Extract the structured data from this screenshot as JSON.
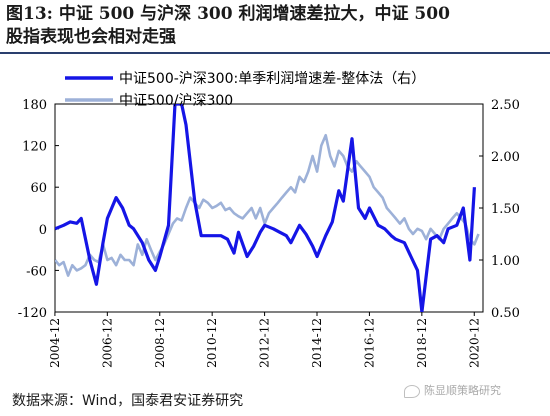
{
  "title": {
    "line1": "图13: 中证 500 与沪深 300 利润增速差拉大，中证 500",
    "line2": "股指表现也会相对走强"
  },
  "source": "数据来源：Wind，国泰君安证券研究",
  "watermark": "陈显顺策略研究",
  "chart_data": {
    "type": "line",
    "legend_position": "top",
    "colors": {
      "profit_diff": "#1515e6",
      "ratio": "#9db1d8"
    },
    "left_axis": {
      "ylim": [
        -120,
        180
      ],
      "ticks": [
        "-120",
        "-60",
        "0",
        "60",
        "120",
        "180"
      ]
    },
    "right_axis": {
      "ylim": [
        0.5,
        2.5
      ],
      "ticks": [
        "0.50",
        "1.00",
        "1.50",
        "2.00",
        "2.50"
      ]
    },
    "x_ticks": [
      "2004-12",
      "2006-12",
      "2008-12",
      "2010-12",
      "2012-12",
      "2014-12",
      "2016-12",
      "2018-12",
      "2020-12"
    ],
    "series": [
      {
        "name": "中证500-沪深300:单季利润增速差-整体法（右）",
        "axis": "left",
        "x": [
          2004.92,
          2005.25,
          2005.5,
          2005.75,
          2005.92,
          2006.25,
          2006.5,
          2006.75,
          2006.92,
          2007.25,
          2007.5,
          2007.75,
          2007.92,
          2008.25,
          2008.5,
          2008.75,
          2008.92,
          2009.25,
          2009.5,
          2009.75,
          2009.92,
          2010.25,
          2010.5,
          2010.75,
          2010.92,
          2011.25,
          2011.5,
          2011.75,
          2011.92,
          2012.25,
          2012.5,
          2012.75,
          2012.92,
          2013.25,
          2013.5,
          2013.75,
          2013.92,
          2014.25,
          2014.5,
          2014.75,
          2014.92,
          2015.25,
          2015.5,
          2015.75,
          2015.92,
          2016.25,
          2016.5,
          2016.75,
          2016.92,
          2017.25,
          2017.5,
          2017.75,
          2017.92,
          2018.25,
          2018.5,
          2018.75,
          2018.92,
          2019.25,
          2019.5,
          2019.75,
          2019.92,
          2020.25,
          2020.5,
          2020.75,
          2020.92
        ],
        "y": [
          0,
          5,
          10,
          8,
          15,
          -45,
          -80,
          -20,
          15,
          45,
          30,
          5,
          0,
          -20,
          -45,
          -60,
          -40,
          5,
          180,
          180,
          150,
          40,
          -10,
          -10,
          -10,
          -10,
          -15,
          -35,
          -5,
          -40,
          -25,
          -5,
          5,
          0,
          -5,
          -10,
          -20,
          5,
          -8,
          -25,
          -40,
          -10,
          10,
          55,
          40,
          130,
          30,
          15,
          30,
          5,
          0,
          -10,
          -15,
          -20,
          -40,
          -60,
          -120,
          -15,
          -10,
          -20,
          0,
          5,
          30,
          -45,
          60
        ]
      },
      {
        "name": "中证500/沪深300",
        "axis": "right",
        "x": [
          2004.92,
          2005.08,
          2005.25,
          2005.42,
          2005.58,
          2005.75,
          2005.92,
          2006.08,
          2006.25,
          2006.42,
          2006.58,
          2006.75,
          2006.92,
          2007.08,
          2007.25,
          2007.42,
          2007.58,
          2007.75,
          2007.92,
          2008.08,
          2008.25,
          2008.42,
          2008.58,
          2008.75,
          2008.92,
          2009.08,
          2009.25,
          2009.42,
          2009.58,
          2009.75,
          2009.92,
          2010.08,
          2010.25,
          2010.42,
          2010.58,
          2010.75,
          2010.92,
          2011.08,
          2011.25,
          2011.42,
          2011.58,
          2011.75,
          2011.92,
          2012.08,
          2012.25,
          2012.42,
          2012.58,
          2012.75,
          2012.92,
          2013.08,
          2013.25,
          2013.42,
          2013.58,
          2013.75,
          2013.92,
          2014.08,
          2014.25,
          2014.42,
          2014.58,
          2014.75,
          2014.92,
          2015.08,
          2015.25,
          2015.42,
          2015.58,
          2015.75,
          2015.92,
          2016.08,
          2016.25,
          2016.42,
          2016.58,
          2016.75,
          2016.92,
          2017.08,
          2017.25,
          2017.42,
          2017.58,
          2017.75,
          2017.92,
          2018.08,
          2018.25,
          2018.42,
          2018.58,
          2018.75,
          2018.92,
          2019.08,
          2019.25,
          2019.42,
          2019.58,
          2019.75,
          2019.92,
          2020.08,
          2020.25,
          2020.42,
          2020.58,
          2020.75,
          2020.92,
          2021.08
        ],
        "y": [
          1.0,
          0.95,
          0.98,
          0.85,
          0.95,
          0.9,
          0.92,
          0.95,
          1.05,
          1.0,
          0.98,
          1.15,
          1.0,
          1.02,
          0.95,
          1.05,
          1.0,
          1.0,
          0.95,
          1.15,
          1.05,
          1.2,
          1.1,
          1.0,
          1.08,
          1.15,
          1.25,
          1.35,
          1.4,
          1.38,
          1.5,
          1.6,
          1.55,
          1.5,
          1.58,
          1.55,
          1.5,
          1.52,
          1.55,
          1.48,
          1.5,
          1.45,
          1.42,
          1.4,
          1.45,
          1.5,
          1.4,
          1.5,
          1.35,
          1.45,
          1.5,
          1.55,
          1.6,
          1.65,
          1.7,
          1.65,
          1.8,
          1.75,
          1.85,
          2.0,
          1.85,
          2.1,
          2.2,
          2.0,
          1.9,
          2.05,
          2.0,
          1.9,
          1.85,
          1.95,
          1.9,
          1.85,
          1.8,
          1.7,
          1.65,
          1.6,
          1.5,
          1.45,
          1.4,
          1.35,
          1.4,
          1.3,
          1.25,
          1.3,
          1.28,
          1.2,
          1.3,
          1.25,
          1.2,
          1.3,
          1.35,
          1.4,
          1.45,
          1.4,
          1.35,
          1.2,
          1.15,
          1.25
        ]
      }
    ]
  }
}
